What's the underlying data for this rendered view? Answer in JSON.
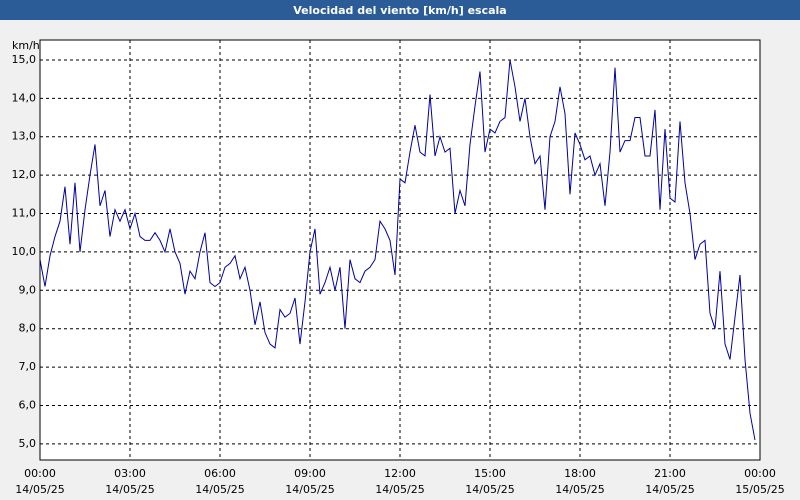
{
  "chart_data": {
    "type": "line",
    "title": "Velocidad del viento [km/h] escala",
    "y_label": "km/h",
    "x": [
      0,
      10,
      20,
      30,
      40,
      50,
      60,
      70,
      80,
      90,
      100,
      110,
      120,
      130,
      140,
      150,
      160,
      170,
      180,
      190,
      200,
      210,
      220,
      230,
      240,
      250,
      260,
      270,
      280,
      290,
      300,
      310,
      320,
      330,
      340,
      350,
      360,
      370,
      380,
      390,
      400,
      410,
      420,
      430,
      440,
      450,
      460,
      470,
      480,
      490,
      500,
      510,
      520,
      530,
      540,
      550,
      560,
      570,
      580,
      590,
      600,
      610,
      620,
      630,
      640,
      650,
      660,
      670,
      680,
      690,
      700,
      710,
      720,
      730,
      740,
      750,
      760,
      770,
      780,
      790,
      800,
      810,
      820,
      830,
      840,
      850,
      860,
      870,
      880,
      890,
      900,
      910,
      920,
      930,
      940,
      950,
      960,
      970,
      980,
      990,
      1000,
      1010,
      1020,
      1030,
      1040,
      1050,
      1060,
      1070,
      1080,
      1090,
      1100,
      1110,
      1120,
      1130,
      1140,
      1150,
      1160,
      1170,
      1180,
      1190,
      1200,
      1210,
      1220,
      1230,
      1240,
      1250,
      1260,
      1270,
      1280,
      1290,
      1300,
      1310,
      1320,
      1330,
      1340,
      1350,
      1360,
      1370,
      1380,
      1390,
      1400,
      1410,
      1420,
      1430
    ],
    "series": [
      {
        "color": "#0000a0",
        "values": [
          9.8,
          9.1,
          9.9,
          10.4,
          10.8,
          11.7,
          10.2,
          11.8,
          10.0,
          11.1,
          12.0,
          12.8,
          11.2,
          11.6,
          10.4,
          11.1,
          10.8,
          11.1,
          10.6,
          11.0,
          10.4,
          10.3,
          10.3,
          10.5,
          10.3,
          10.0,
          10.6,
          10.0,
          9.7,
          8.9,
          9.5,
          9.3,
          10.0,
          10.5,
          9.2,
          9.1,
          9.2,
          9.6,
          9.7,
          9.9,
          9.3,
          9.6,
          9.0,
          8.1,
          8.7,
          7.9,
          7.6,
          7.5,
          8.5,
          8.3,
          8.4,
          8.8,
          7.6,
          8.7,
          10.0,
          10.6,
          8.9,
          9.2,
          9.6,
          9.0,
          9.6,
          8.0,
          9.8,
          9.3,
          9.2,
          9.5,
          9.6,
          9.8,
          10.8,
          10.6,
          10.3,
          9.4,
          11.9,
          11.8,
          12.6,
          13.3,
          12.6,
          12.5,
          14.1,
          12.5,
          13.0,
          12.6,
          12.7,
          11.0,
          11.6,
          11.2,
          12.8,
          13.8,
          14.7,
          12.6,
          13.2,
          13.1,
          13.4,
          13.5,
          15.0,
          14.3,
          13.4,
          14.0,
          13.0,
          12.3,
          12.5,
          11.1,
          13.0,
          13.4,
          14.3,
          13.6,
          11.5,
          13.1,
          12.8,
          12.4,
          12.5,
          12.0,
          12.3,
          11.2,
          12.6,
          14.8,
          12.6,
          12.9,
          12.9,
          13.5,
          13.5,
          12.5,
          12.5,
          13.7,
          11.1,
          13.2,
          11.4,
          11.3,
          13.4,
          11.8,
          11.0,
          9.8,
          10.2,
          10.3,
          8.4,
          8.0,
          9.5,
          7.6,
          7.2,
          8.3,
          9.4,
          7.2,
          5.8,
          5.1
        ]
      }
    ],
    "xlim": [
      0,
      1440
    ],
    "xticks": [
      {
        "value": 0,
        "label": [
          "00:00",
          "14/05/25"
        ]
      },
      {
        "value": 180,
        "label": [
          "03:00",
          "14/05/25"
        ]
      },
      {
        "value": 360,
        "label": [
          "06:00",
          "14/05/25"
        ]
      },
      {
        "value": 540,
        "label": [
          "09:00",
          "14/05/25"
        ]
      },
      {
        "value": 720,
        "label": [
          "12:00",
          "14/05/25"
        ]
      },
      {
        "value": 900,
        "label": [
          "15:00",
          "14/05/25"
        ]
      },
      {
        "value": 1080,
        "label": [
          "18:00",
          "14/05/25"
        ]
      },
      {
        "value": 1260,
        "label": [
          "21:00",
          "14/05/25"
        ]
      },
      {
        "value": 1440,
        "label": [
          "00:00",
          "15/05/25"
        ]
      }
    ],
    "ylim": [
      4.58,
      15.52
    ],
    "yticks": [
      {
        "value": 5,
        "label": "5,0"
      },
      {
        "value": 6,
        "label": "6,0"
      },
      {
        "value": 7,
        "label": "7,0"
      },
      {
        "value": 8,
        "label": "8,0"
      },
      {
        "value": 9,
        "label": "9,0"
      },
      {
        "value": 10,
        "label": "10,0"
      },
      {
        "value": 11,
        "label": "11,0"
      },
      {
        "value": 12,
        "label": "12,0"
      },
      {
        "value": 13,
        "label": "13,0"
      },
      {
        "value": 14,
        "label": "14,0"
      },
      {
        "value": 15,
        "label": "15,0"
      }
    ],
    "grid": true
  }
}
